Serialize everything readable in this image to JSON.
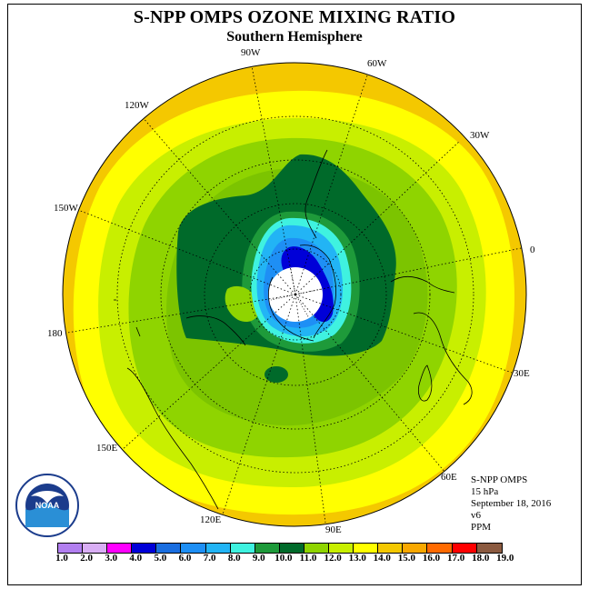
{
  "title": "S-NPP OMPS OZONE MIXING RATIO",
  "subtitle": "Southern Hemisphere",
  "longitude_labels": [
    {
      "key": "90w",
      "text": "90W"
    },
    {
      "key": "60w",
      "text": "60W"
    },
    {
      "key": "120w",
      "text": "120W"
    },
    {
      "key": "30w",
      "text": "30W"
    },
    {
      "key": "150w",
      "text": "150W"
    },
    {
      "key": "0",
      "text": "0"
    },
    {
      "key": "180",
      "text": "180"
    },
    {
      "key": "30e",
      "text": "30E"
    },
    {
      "key": "150e",
      "text": "150E"
    },
    {
      "key": "60e",
      "text": "60E"
    },
    {
      "key": "120e",
      "text": "120E"
    },
    {
      "key": "90e",
      "text": "90E"
    }
  ],
  "info": {
    "instrument": "S-NPP OMPS",
    "level": "15 hPa",
    "date": "September 18, 2016",
    "version": "v6",
    "units": "PPM"
  },
  "logo_text": "NOAA",
  "colorbar": {
    "colors": [
      "#b27ff0",
      "#d9aef5",
      "#ff00ff",
      "#0000d8",
      "#1a6ee0",
      "#1e8ff5",
      "#22b4f5",
      "#3ff2e0",
      "#1e9a3a",
      "#006a2a",
      "#8fd400",
      "#c8ef00",
      "#ffff00",
      "#f4c800",
      "#f9a800",
      "#ff6a00",
      "#ff0000",
      "#8b5a40"
    ],
    "ticks": [
      "1.0",
      "2.0",
      "3.0",
      "4.0",
      "5.0",
      "6.0",
      "7.0",
      "8.0",
      "9.0",
      "10.0",
      "11.0",
      "12.0",
      "13.0",
      "14.0",
      "15.0",
      "16.0",
      "17.0",
      "18.0",
      "19.0"
    ]
  }
}
